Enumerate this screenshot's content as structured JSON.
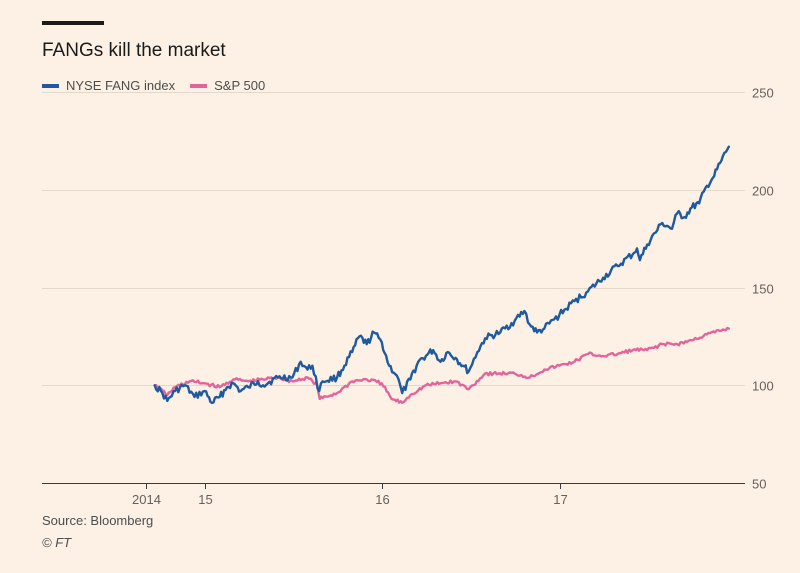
{
  "chart_data": {
    "type": "line",
    "title": "FANGs kill the market",
    "xlabel": "",
    "ylabel": "",
    "y_ticks": [
      "250",
      "200",
      "150",
      "100",
      "50"
    ],
    "ylim": [
      50,
      250
    ],
    "x_ticks": [
      "2014",
      "15",
      "16",
      "17"
    ],
    "xlim": [
      "2014-09-01",
      "2017-12-31"
    ],
    "y_axis_side": "right",
    "grid": true,
    "legend_position": "top-left",
    "series": [
      {
        "name": "NYSE FANG index",
        "color": "#1f5aa0",
        "points": [
          [
            "2014-09-19",
            100
          ],
          [
            "2014-10-05",
            96
          ],
          [
            "2014-10-15",
            92
          ],
          [
            "2014-10-31",
            97
          ],
          [
            "2014-11-20",
            100
          ],
          [
            "2014-12-10",
            94
          ],
          [
            "2014-12-31",
            97
          ],
          [
            "2015-01-15",
            91
          ],
          [
            "2015-01-31",
            94
          ],
          [
            "2015-02-15",
            99
          ],
          [
            "2015-02-28",
            101
          ],
          [
            "2015-03-15",
            97
          ],
          [
            "2015-03-31",
            99
          ],
          [
            "2015-04-20",
            102
          ],
          [
            "2015-04-30",
            100
          ],
          [
            "2015-05-31",
            104
          ],
          [
            "2015-06-30",
            104
          ],
          [
            "2015-07-17",
            112
          ],
          [
            "2015-07-31",
            108
          ],
          [
            "2015-08-10",
            110
          ],
          [
            "2015-08-24",
            97
          ],
          [
            "2015-08-31",
            102
          ],
          [
            "2015-09-30",
            104
          ],
          [
            "2015-10-15",
            110
          ],
          [
            "2015-10-31",
            117
          ],
          [
            "2015-11-15",
            125
          ],
          [
            "2015-11-30",
            121
          ],
          [
            "2015-12-15",
            127
          ],
          [
            "2015-12-31",
            122
          ],
          [
            "2016-01-15",
            110
          ],
          [
            "2016-01-31",
            105
          ],
          [
            "2016-02-11",
            96
          ],
          [
            "2016-02-28",
            103
          ],
          [
            "2016-03-15",
            112
          ],
          [
            "2016-03-31",
            115
          ],
          [
            "2016-04-15",
            118
          ],
          [
            "2016-04-30",
            112
          ],
          [
            "2016-05-15",
            117
          ],
          [
            "2016-05-31",
            114
          ],
          [
            "2016-06-15",
            110
          ],
          [
            "2016-06-27",
            107
          ],
          [
            "2016-07-15",
            117
          ],
          [
            "2016-07-31",
            124
          ],
          [
            "2016-08-31",
            127
          ],
          [
            "2016-09-30",
            133
          ],
          [
            "2016-10-20",
            138
          ],
          [
            "2016-10-31",
            131
          ],
          [
            "2016-11-15",
            127
          ],
          [
            "2016-11-30",
            129
          ],
          [
            "2016-12-31",
            136
          ],
          [
            "2017-01-31",
            143
          ],
          [
            "2017-02-28",
            148
          ],
          [
            "2017-03-31",
            155
          ],
          [
            "2017-04-30",
            161
          ],
          [
            "2017-05-31",
            167
          ],
          [
            "2017-06-09",
            170
          ],
          [
            "2017-06-15",
            164
          ],
          [
            "2017-06-30",
            172
          ],
          [
            "2017-07-31",
            183
          ],
          [
            "2017-08-20",
            180
          ],
          [
            "2017-08-31",
            188
          ],
          [
            "2017-09-15",
            186
          ],
          [
            "2017-09-30",
            191
          ],
          [
            "2017-10-15",
            193
          ],
          [
            "2017-10-31",
            202
          ],
          [
            "2017-11-15",
            207
          ],
          [
            "2017-11-30",
            215
          ],
          [
            "2017-12-15",
            222
          ]
        ]
      },
      {
        "name": "S&P 500",
        "color": "#e3649a",
        "points": [
          [
            "2014-09-19",
            100
          ],
          [
            "2014-10-15",
            95
          ],
          [
            "2014-10-31",
            99
          ],
          [
            "2014-11-30",
            102
          ],
          [
            "2014-12-31",
            101
          ],
          [
            "2015-01-31",
            99
          ],
          [
            "2015-02-28",
            103
          ],
          [
            "2015-03-31",
            102
          ],
          [
            "2015-04-30",
            103
          ],
          [
            "2015-05-31",
            104
          ],
          [
            "2015-06-30",
            102
          ],
          [
            "2015-07-31",
            104
          ],
          [
            "2015-08-20",
            100
          ],
          [
            "2015-08-25",
            93
          ],
          [
            "2015-09-30",
            96
          ],
          [
            "2015-10-31",
            102
          ],
          [
            "2015-11-30",
            103
          ],
          [
            "2015-12-31",
            101
          ],
          [
            "2016-01-20",
            93
          ],
          [
            "2016-02-11",
            91
          ],
          [
            "2016-02-28",
            95
          ],
          [
            "2016-03-31",
            100
          ],
          [
            "2016-04-30",
            101
          ],
          [
            "2016-05-31",
            102
          ],
          [
            "2016-06-27",
            98
          ],
          [
            "2016-07-31",
            106
          ],
          [
            "2016-08-31",
            106
          ],
          [
            "2016-09-30",
            106
          ],
          [
            "2016-10-31",
            104
          ],
          [
            "2016-11-30",
            108
          ],
          [
            "2016-12-31",
            110
          ],
          [
            "2017-01-31",
            112
          ],
          [
            "2017-02-28",
            116
          ],
          [
            "2017-03-31",
            115
          ],
          [
            "2017-04-30",
            116
          ],
          [
            "2017-05-31",
            118
          ],
          [
            "2017-06-30",
            118
          ],
          [
            "2017-07-31",
            121
          ],
          [
            "2017-08-31",
            121
          ],
          [
            "2017-09-30",
            123
          ],
          [
            "2017-10-31",
            126
          ],
          [
            "2017-11-30",
            128
          ],
          [
            "2017-12-15",
            129
          ]
        ]
      }
    ]
  },
  "source": "Source: Bloomberg",
  "copyright": "© FT"
}
